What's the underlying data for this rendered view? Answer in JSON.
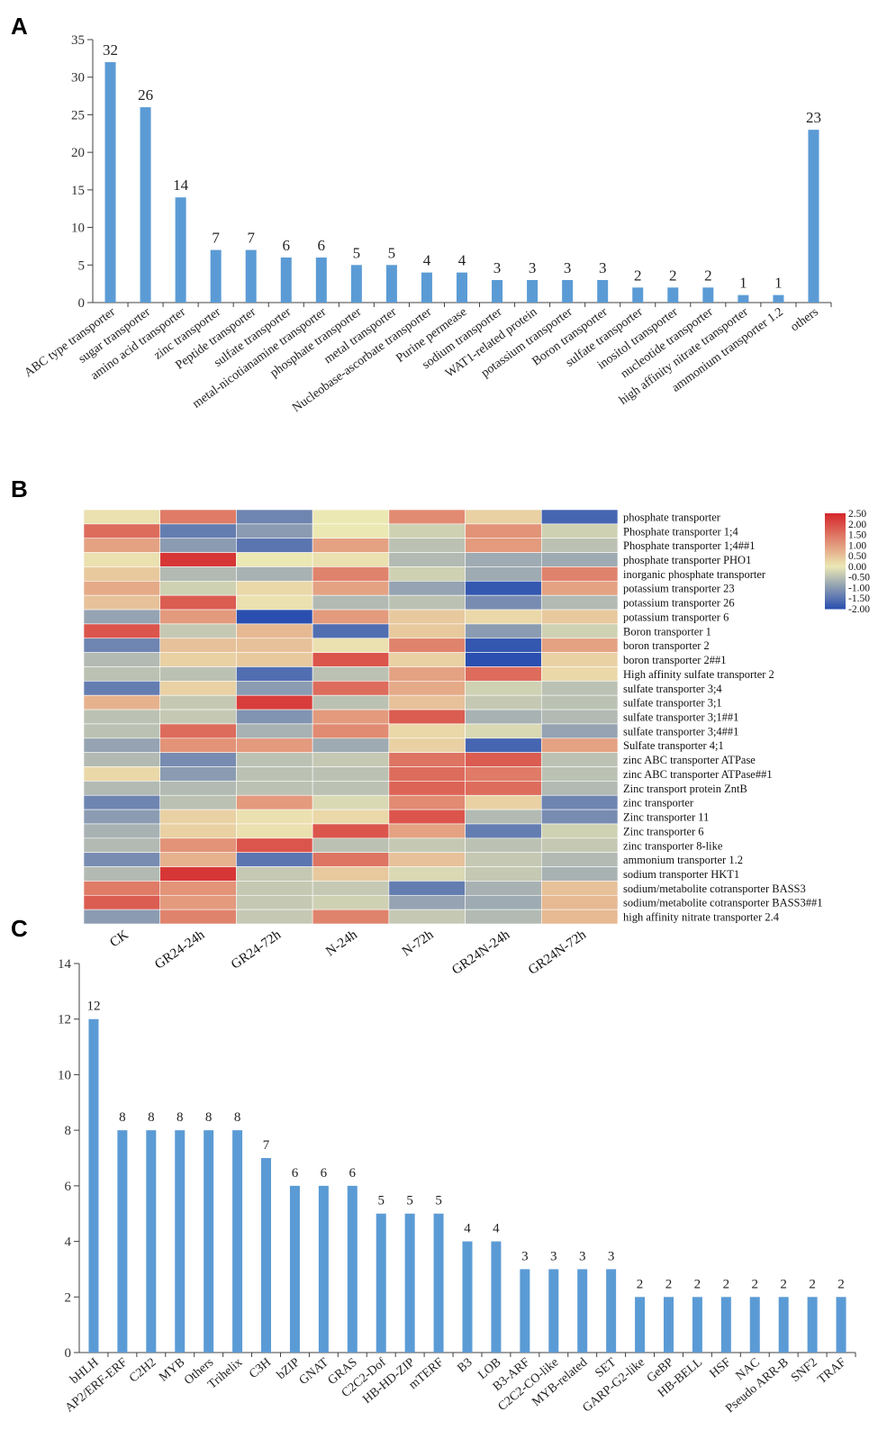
{
  "panels": {
    "a": "A",
    "b": "B",
    "c": "C"
  },
  "colors": {
    "bar": "#5b9bd5",
    "axis": "#404040",
    "scale_low": "#2a4fb0",
    "scale_mid": "#ece8b4",
    "scale_high": "#d5262b"
  },
  "chart_data": [
    {
      "type": "bar",
      "title": "",
      "xlabel": "",
      "ylabel": "",
      "ylim": [
        0,
        35
      ],
      "yticks": [
        0,
        5,
        10,
        15,
        20,
        25,
        30,
        35
      ],
      "categories": [
        "ABC type transporter",
        "sugar transporter",
        "amino acid transporter",
        "zinc transporter",
        "Peptide transporter",
        "sulfate transporter",
        "metal-nicotianamine transporter",
        "phosphate transporter",
        "metal transporter",
        "Nucleobase-ascorbate transporter",
        "Purine permease",
        "sodium transporter",
        "WAT1-related protein",
        "potassium transporter",
        "Boron transporter",
        "sulfate transporter",
        "inositol transporter",
        "nucleotide transporter",
        "high affinity nitrate transporter",
        "ammonium transporter 1.2",
        "others"
      ],
      "values": [
        32,
        26,
        14,
        7,
        7,
        6,
        6,
        5,
        5,
        4,
        4,
        3,
        3,
        3,
        3,
        2,
        2,
        2,
        1,
        1,
        23
      ]
    },
    {
      "type": "heatmap",
      "columns": [
        "CK",
        "GR24-24h",
        "GR24-72h",
        "N-24h",
        "N-72h",
        "GR24N-24h",
        "GR24N-72h"
      ],
      "rows": [
        "phosphate transporter",
        "Phosphate transporter 1;4",
        "Phosphate transporter 1;4##1",
        "phosphate transporter PHO1",
        "inorganic phosphate transporter",
        "potassium transporter 23",
        "potassium transporter 26",
        "potassium transporter 6",
        "Boron transporter 1",
        "boron transporter 2",
        "boron transporter 2##1",
        "High affinity sulfate transporter 2",
        "sulfate transporter 3;4",
        "sulfate transporter 3;1",
        "sulfate transporter 3;1##1",
        "sulfate transporter 3;4##1",
        "Sulfate transporter 4;1",
        "zinc ABC transporter ATPase",
        "zinc ABC transporter ATPase##1",
        "Zinc transport protein ZntB",
        "zinc transporter",
        "Zinc transporter 11",
        "Zinc transporter 6",
        "zinc transporter 8-like",
        "ammonium transporter 1.2",
        "sodium transporter HKT1",
        "sodium/metabolite cotransporter BASS3",
        "sodium/metabolite cotransporter BASS3##1",
        "high affinity nitrate transporter 2.4"
      ],
      "values": [
        [
          0.1,
          1.4,
          -1.3,
          0.0,
          1.2,
          0.3,
          -1.7
        ],
        [
          1.6,
          -1.4,
          -1.0,
          0.0,
          -0.3,
          1.1,
          -0.3
        ],
        [
          0.9,
          -1.0,
          -1.5,
          0.9,
          -0.5,
          1.0,
          -0.5
        ],
        [
          0.1,
          2.3,
          0.0,
          0.1,
          -0.6,
          -0.8,
          -0.8
        ],
        [
          0.4,
          -0.6,
          -0.7,
          1.3,
          -0.3,
          -0.8,
          1.3
        ],
        [
          0.8,
          -0.3,
          0.2,
          0.9,
          -0.9,
          -1.9,
          0.9
        ],
        [
          0.5,
          1.8,
          0.1,
          -0.6,
          -0.5,
          -1.2,
          -0.6
        ],
        [
          -0.9,
          1.0,
          -2.0,
          1.0,
          0.4,
          0.2,
          0.4
        ],
        [
          1.9,
          -0.4,
          0.6,
          -1.6,
          0.4,
          -1.0,
          -0.3
        ],
        [
          -1.3,
          0.5,
          0.5,
          0.1,
          1.3,
          -1.9,
          0.9
        ],
        [
          -0.6,
          0.3,
          0.4,
          1.9,
          0.3,
          -2.0,
          0.3
        ],
        [
          -0.5,
          -0.5,
          -1.6,
          -0.5,
          0.9,
          1.6,
          0.2
        ],
        [
          -1.4,
          0.3,
          -1.0,
          1.6,
          0.8,
          -0.3,
          -0.5
        ],
        [
          0.7,
          -0.4,
          2.2,
          -0.5,
          0.5,
          -0.4,
          -0.5
        ],
        [
          -0.5,
          -0.4,
          -1.1,
          1.0,
          1.8,
          -0.7,
          -0.6
        ],
        [
          -0.5,
          1.6,
          -0.7,
          1.2,
          0.2,
          -0.2,
          -0.9
        ],
        [
          -0.9,
          1.1,
          1.0,
          -0.8,
          0.3,
          -1.7,
          0.9
        ],
        [
          -0.6,
          -1.2,
          -0.5,
          -0.4,
          1.5,
          1.8,
          -0.5
        ],
        [
          0.2,
          -1.0,
          -0.5,
          -0.5,
          1.6,
          1.4,
          -0.5
        ],
        [
          -0.6,
          -0.6,
          -0.5,
          -0.5,
          1.7,
          1.6,
          -0.6
        ],
        [
          -1.3,
          -0.5,
          1.0,
          -0.2,
          1.2,
          0.3,
          -1.3
        ],
        [
          -1.0,
          0.3,
          0.1,
          0.2,
          1.9,
          -0.6,
          -1.2
        ],
        [
          -0.7,
          0.3,
          0.1,
          1.9,
          0.9,
          -1.4,
          -0.3
        ],
        [
          -0.6,
          1.1,
          1.9,
          -0.5,
          -0.4,
          -0.5,
          -0.4
        ],
        [
          -1.2,
          0.7,
          -1.5,
          1.5,
          0.5,
          -0.4,
          -0.6
        ],
        [
          -0.6,
          2.3,
          -0.4,
          0.4,
          -0.2,
          -0.4,
          -0.7
        ],
        [
          1.4,
          1.1,
          -0.4,
          -0.4,
          -1.4,
          -0.7,
          0.5
        ],
        [
          1.8,
          1.0,
          -0.4,
          -0.3,
          -0.9,
          -0.8,
          0.6
        ],
        [
          -1.0,
          1.3,
          -0.4,
          1.3,
          -0.4,
          -0.6,
          0.6
        ]
      ],
      "scale_range": [
        -2.0,
        2.5
      ],
      "scale_labels": [
        "2.50",
        "2.00",
        "1.50",
        "1.00",
        "0.50",
        "0.00",
        "-0.50",
        "-1.00",
        "-1.50",
        "-2.00"
      ]
    },
    {
      "type": "bar",
      "title": "",
      "xlabel": "",
      "ylabel": "",
      "ylim": [
        0,
        14
      ],
      "yticks": [
        0,
        2,
        4,
        6,
        8,
        10,
        12,
        14
      ],
      "categories": [
        "bHLH",
        "AP2/ERF-ERF",
        "C2H2",
        "MYB",
        "Others",
        "Trihelix",
        "C3H",
        "bZIP",
        "GNAT",
        "GRAS",
        "C2C2-Dof",
        "HB-HD-ZIP",
        "mTERF",
        "B3",
        "LOB",
        "B3-ARF",
        "C2C2-CO-like",
        "MYB-related",
        "SET",
        "GARP-G2-like",
        "GeBP",
        "HB-BELL",
        "HSF",
        "NAC",
        "Pseudo ARR-B",
        "SNF2",
        "TRAF"
      ],
      "values": [
        12,
        8,
        8,
        8,
        8,
        8,
        7,
        6,
        6,
        6,
        5,
        5,
        5,
        4,
        4,
        3,
        3,
        3,
        3,
        2,
        2,
        2,
        2,
        2,
        2,
        2,
        2
      ]
    }
  ]
}
